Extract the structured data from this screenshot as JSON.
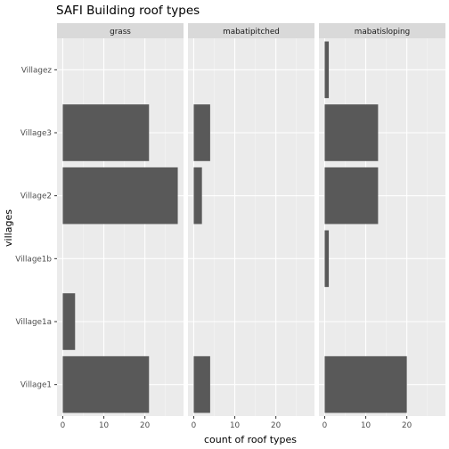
{
  "chart_data": {
    "type": "bar",
    "orientation": "horizontal",
    "title": "SAFI Building roof types",
    "xlabel": "count of roof types",
    "ylabel": "villages",
    "categories": [
      "Village1",
      "Village1a",
      "Village1b",
      "Village2",
      "Village3",
      "Villagez"
    ],
    "xticks": [
      0,
      10,
      20
    ],
    "xlim": [
      -1.4,
      29.4
    ],
    "facets": [
      {
        "label": "grass",
        "values": [
          21,
          3,
          0,
          28,
          21,
          0
        ]
      },
      {
        "label": "mabatipitched",
        "values": [
          4,
          0,
          0,
          2,
          4,
          0
        ]
      },
      {
        "label": "mabatisloping",
        "values": [
          20,
          0,
          1,
          13,
          13,
          1
        ]
      }
    ],
    "grid": true,
    "colors": {
      "bar": "#595959",
      "panel": "#ebebeb",
      "strip": "#d9d9d9",
      "grid_major": "#ffffff",
      "grid_minor": "#f5f5f5"
    }
  }
}
